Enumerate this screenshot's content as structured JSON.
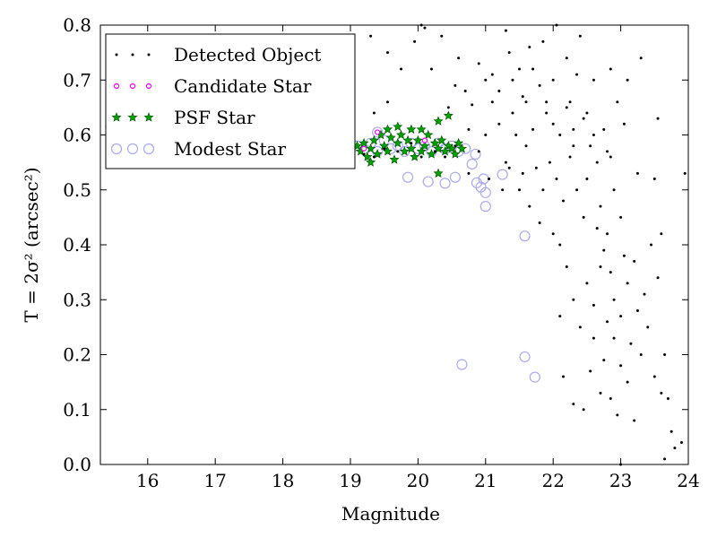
{
  "chart_data": {
    "type": "scatter",
    "xlabel": "Magnitude",
    "ylabel": "T = 2σ² (arcsec²)",
    "xlim": [
      15.3,
      24.0
    ],
    "ylim": [
      0.0,
      0.8
    ],
    "xticks": [
      "16",
      "17",
      "18",
      "19",
      "20",
      "21",
      "22",
      "23",
      "24"
    ],
    "yticks": [
      "0.0",
      "0.1",
      "0.2",
      "0.3",
      "0.4",
      "0.5",
      "0.6",
      "0.7",
      "0.8"
    ],
    "grid": false,
    "legend_position": "top-left",
    "series": [
      {
        "name": "Detected Object",
        "marker": "dot",
        "color": "#000000",
        "points": [
          [
            15.45,
            0.615
          ],
          [
            19.2,
            0.565
          ],
          [
            19.35,
            0.56
          ],
          [
            19.5,
            0.575
          ],
          [
            19.7,
            0.57
          ],
          [
            19.9,
            0.585
          ],
          [
            20.05,
            0.56
          ],
          [
            20.25,
            0.57
          ],
          [
            20.4,
            0.56
          ],
          [
            20.55,
            0.58
          ],
          [
            19.0,
            0.76
          ],
          [
            19.3,
            0.78
          ],
          [
            19.55,
            0.75
          ],
          [
            19.75,
            0.72
          ],
          [
            19.55,
            0.66
          ],
          [
            19.35,
            0.64
          ],
          [
            19.95,
            0.77
          ],
          [
            20.05,
            0.8
          ],
          [
            20.1,
            0.795
          ],
          [
            20.2,
            0.72
          ],
          [
            20.35,
            0.78
          ],
          [
            20.45,
            0.65
          ],
          [
            20.55,
            0.69
          ],
          [
            20.6,
            0.74
          ],
          [
            20.7,
            0.68
          ],
          [
            20.75,
            0.61
          ],
          [
            20.8,
            0.655
          ],
          [
            20.9,
            0.73
          ],
          [
            21.0,
            0.7
          ],
          [
            21.1,
            0.71
          ],
          [
            21.2,
            0.68
          ],
          [
            21.3,
            0.79
          ],
          [
            21.35,
            0.75
          ],
          [
            21.4,
            0.64
          ],
          [
            21.5,
            0.72
          ],
          [
            21.6,
            0.66
          ],
          [
            21.65,
            0.76
          ],
          [
            21.7,
            0.61
          ],
          [
            21.8,
            0.69
          ],
          [
            21.85,
            0.77
          ],
          [
            21.9,
            0.64
          ],
          [
            22.0,
            0.7
          ],
          [
            22.05,
            0.8
          ],
          [
            22.1,
            0.6
          ],
          [
            22.2,
            0.74
          ],
          [
            22.25,
            0.66
          ],
          [
            22.3,
            0.58
          ],
          [
            22.35,
            0.71
          ],
          [
            22.4,
            0.78
          ],
          [
            22.45,
            0.63
          ],
          [
            22.5,
            0.52
          ],
          [
            22.6,
            0.7
          ],
          [
            22.65,
            0.55
          ],
          [
            22.7,
            0.47
          ],
          [
            22.75,
            0.61
          ],
          [
            22.8,
            0.42
          ],
          [
            22.85,
            0.56
          ],
          [
            22.9,
            0.5
          ],
          [
            23.0,
            0.45
          ],
          [
            23.05,
            0.38
          ],
          [
            21.95,
            0.55
          ],
          [
            22.05,
            0.52
          ],
          [
            22.15,
            0.48
          ],
          [
            22.25,
            0.56
          ],
          [
            22.35,
            0.5
          ],
          [
            22.45,
            0.45
          ],
          [
            22.55,
            0.58
          ],
          [
            22.65,
            0.43
          ],
          [
            22.75,
            0.39
          ],
          [
            22.85,
            0.35
          ],
          [
            21.6,
            0.58
          ],
          [
            21.75,
            0.54
          ],
          [
            21.85,
            0.5
          ],
          [
            21.55,
            0.53
          ],
          [
            21.45,
            0.6
          ],
          [
            21.3,
            0.55
          ],
          [
            21.2,
            0.62
          ],
          [
            21.1,
            0.66
          ],
          [
            21.0,
            0.6
          ],
          [
            20.9,
            0.57
          ],
          [
            22.9,
            0.3
          ],
          [
            23.0,
            0.27
          ],
          [
            23.1,
            0.33
          ],
          [
            23.15,
            0.22
          ],
          [
            23.2,
            0.37
          ],
          [
            23.25,
            0.28
          ],
          [
            23.3,
            0.2
          ],
          [
            23.35,
            0.31
          ],
          [
            23.4,
            0.25
          ],
          [
            23.45,
            0.4
          ],
          [
            23.5,
            0.16
          ],
          [
            23.55,
            0.34
          ],
          [
            23.6,
            0.13
          ],
          [
            23.65,
            0.2
          ],
          [
            23.7,
            0.12
          ],
          [
            23.75,
            0.06
          ],
          [
            23.8,
            0.03
          ],
          [
            23.9,
            0.04
          ],
          [
            23.65,
            0.01
          ],
          [
            23.2,
            0.08
          ],
          [
            22.6,
            0.23
          ],
          [
            22.7,
            0.13
          ],
          [
            22.75,
            0.19
          ],
          [
            22.85,
            0.12
          ],
          [
            22.95,
            0.09
          ],
          [
            23.0,
            0.0
          ],
          [
            22.55,
            0.17
          ],
          [
            22.45,
            0.1
          ],
          [
            22.3,
            0.11
          ],
          [
            22.15,
            0.16
          ],
          [
            20.75,
            0.53
          ],
          [
            21.05,
            0.52
          ],
          [
            21.25,
            0.5
          ],
          [
            21.35,
            0.54
          ],
          [
            21.5,
            0.5
          ],
          [
            21.65,
            0.47
          ],
          [
            21.8,
            0.44
          ],
          [
            22.0,
            0.42
          ],
          [
            22.1,
            0.4
          ],
          [
            22.2,
            0.36
          ],
          [
            23.05,
            0.62
          ],
          [
            23.25,
            0.53
          ],
          [
            23.5,
            0.52
          ],
          [
            23.6,
            0.42
          ],
          [
            23.95,
            0.53
          ],
          [
            23.55,
            0.63
          ],
          [
            23.1,
            0.7
          ],
          [
            23.3,
            0.74
          ],
          [
            22.95,
            0.66
          ],
          [
            22.85,
            0.72
          ],
          [
            22.1,
            0.27
          ],
          [
            22.3,
            0.3
          ],
          [
            22.4,
            0.25
          ],
          [
            22.5,
            0.33
          ],
          [
            22.6,
            0.29
          ],
          [
            22.7,
            0.36
          ],
          [
            22.8,
            0.26
          ],
          [
            22.9,
            0.23
          ],
          [
            23.0,
            0.18
          ],
          [
            23.1,
            0.15
          ],
          [
            21.4,
            0.7
          ],
          [
            21.55,
            0.67
          ],
          [
            21.7,
            0.72
          ],
          [
            21.9,
            0.66
          ],
          [
            22.0,
            0.62
          ],
          [
            22.2,
            0.65
          ],
          [
            22.3,
            0.61
          ],
          [
            22.5,
            0.64
          ],
          [
            22.6,
            0.6
          ],
          [
            22.8,
            0.57
          ]
        ]
      },
      {
        "name": "Candidate Star",
        "marker": "small-circle",
        "color": "#ff00ff",
        "points": [
          [
            15.45,
            0.615
          ],
          [
            19.4,
            0.605
          ],
          [
            19.2,
            0.575
          ],
          [
            20.1,
            0.59
          ]
        ]
      },
      {
        "name": "PSF Star",
        "marker": "star",
        "color": "#00a000",
        "points": [
          [
            19.1,
            0.58
          ],
          [
            19.15,
            0.57
          ],
          [
            19.2,
            0.585
          ],
          [
            19.25,
            0.56
          ],
          [
            19.3,
            0.575
          ],
          [
            19.35,
            0.59
          ],
          [
            19.4,
            0.565
          ],
          [
            19.45,
            0.6
          ],
          [
            19.5,
            0.58
          ],
          [
            19.55,
            0.57
          ],
          [
            19.6,
            0.595
          ],
          [
            19.65,
            0.555
          ],
          [
            19.7,
            0.585
          ],
          [
            19.75,
            0.6
          ],
          [
            19.8,
            0.57
          ],
          [
            19.85,
            0.59
          ],
          [
            19.9,
            0.575
          ],
          [
            19.95,
            0.56
          ],
          [
            20.0,
            0.59
          ],
          [
            20.05,
            0.57
          ],
          [
            20.1,
            0.58
          ],
          [
            20.15,
            0.6
          ],
          [
            20.2,
            0.565
          ],
          [
            20.25,
            0.585
          ],
          [
            20.3,
            0.575
          ],
          [
            20.35,
            0.59
          ],
          [
            20.4,
            0.57
          ],
          [
            20.45,
            0.58
          ],
          [
            20.5,
            0.575
          ],
          [
            20.55,
            0.565
          ],
          [
            20.6,
            0.585
          ],
          [
            20.65,
            0.575
          ],
          [
            20.3,
            0.53
          ],
          [
            20.45,
            0.635
          ],
          [
            20.3,
            0.625
          ],
          [
            19.55,
            0.61
          ],
          [
            19.7,
            0.615
          ],
          [
            19.9,
            0.61
          ],
          [
            20.05,
            0.61
          ],
          [
            19.3,
            0.55
          ]
        ]
      },
      {
        "name": "Modest Star",
        "marker": "open-circle",
        "color": "#aaaaee",
        "points": [
          [
            19.1,
            0.58
          ],
          [
            19.2,
            0.575
          ],
          [
            19.3,
            0.585
          ],
          [
            19.4,
            0.57
          ],
          [
            19.5,
            0.59
          ],
          [
            19.6,
            0.575
          ],
          [
            19.7,
            0.58
          ],
          [
            19.8,
            0.57
          ],
          [
            19.9,
            0.585
          ],
          [
            20.0,
            0.575
          ],
          [
            20.1,
            0.58
          ],
          [
            20.2,
            0.57
          ],
          [
            20.3,
            0.585
          ],
          [
            20.4,
            0.575
          ],
          [
            20.5,
            0.58
          ],
          [
            20.6,
            0.57
          ],
          [
            20.7,
            0.575
          ],
          [
            20.85,
            0.565
          ],
          [
            19.85,
            0.523
          ],
          [
            20.15,
            0.515
          ],
          [
            20.4,
            0.512
          ],
          [
            20.55,
            0.523
          ],
          [
            20.8,
            0.547
          ],
          [
            20.87,
            0.513
          ],
          [
            20.93,
            0.505
          ],
          [
            20.97,
            0.52
          ],
          [
            21.0,
            0.495
          ],
          [
            21.0,
            0.47
          ],
          [
            21.25,
            0.528
          ],
          [
            21.58,
            0.416
          ],
          [
            20.65,
            0.182
          ],
          [
            21.58,
            0.196
          ],
          [
            21.73,
            0.159
          ],
          [
            19.4,
            0.605
          ],
          [
            15.45,
            0.615
          ]
        ]
      }
    ]
  }
}
